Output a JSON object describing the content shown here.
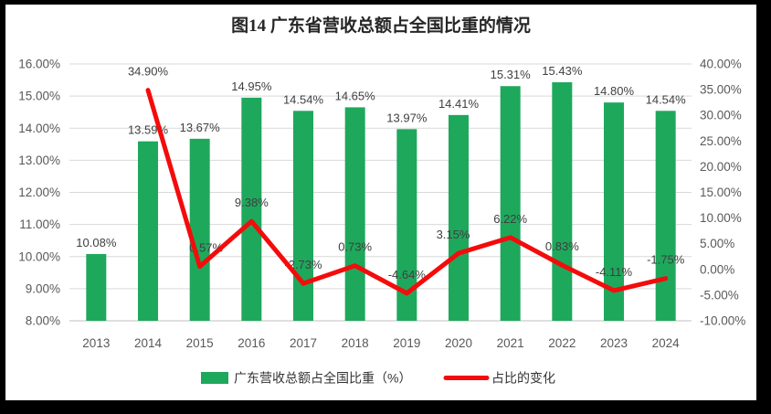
{
  "frame": {
    "border_color": "#000000",
    "background": "#ffffff"
  },
  "chart_data": {
    "type": "bar+line",
    "title": "图14  广东省营收总额占全国比重的情况",
    "categories": [
      "2013",
      "2014",
      "2015",
      "2016",
      "2017",
      "2018",
      "2019",
      "2020",
      "2021",
      "2022",
      "2023",
      "2024"
    ],
    "series": [
      {
        "name": "广东营收总额占全国比重（%）",
        "type": "bar",
        "axis": "left",
        "color": "#1ea85c",
        "values": [
          10.08,
          13.59,
          13.67,
          14.95,
          14.54,
          14.65,
          13.97,
          14.41,
          15.31,
          15.43,
          14.8,
          14.54
        ]
      },
      {
        "name": "占比的变化",
        "type": "line",
        "axis": "right",
        "color": "#f40b0b",
        "values": [
          null,
          34.9,
          0.57,
          9.38,
          -2.73,
          0.73,
          -4.64,
          3.15,
          6.22,
          0.83,
          -4.11,
          -1.75
        ]
      }
    ],
    "left_axis": {
      "min": 8,
      "max": 16,
      "step": 1,
      "tick_labels": [
        "16.00%",
        "15.00%",
        "14.00%",
        "13.00%",
        "12.00%",
        "11.00%",
        "10.00%",
        "9.00%",
        "8.00%"
      ]
    },
    "right_axis": {
      "min": -10,
      "max": 40,
      "step": 5,
      "tick_labels": [
        "40.00%",
        "35.00%",
        "30.00%",
        "25.00%",
        "20.00%",
        "15.00%",
        "10.00%",
        "5.00%",
        "0.00%",
        "-5.00%",
        "-10.00%"
      ]
    },
    "grid": true,
    "gridline_color": "#d9d9d9",
    "axis_line_color": "#bfbfbf",
    "legend_position": "bottom"
  }
}
